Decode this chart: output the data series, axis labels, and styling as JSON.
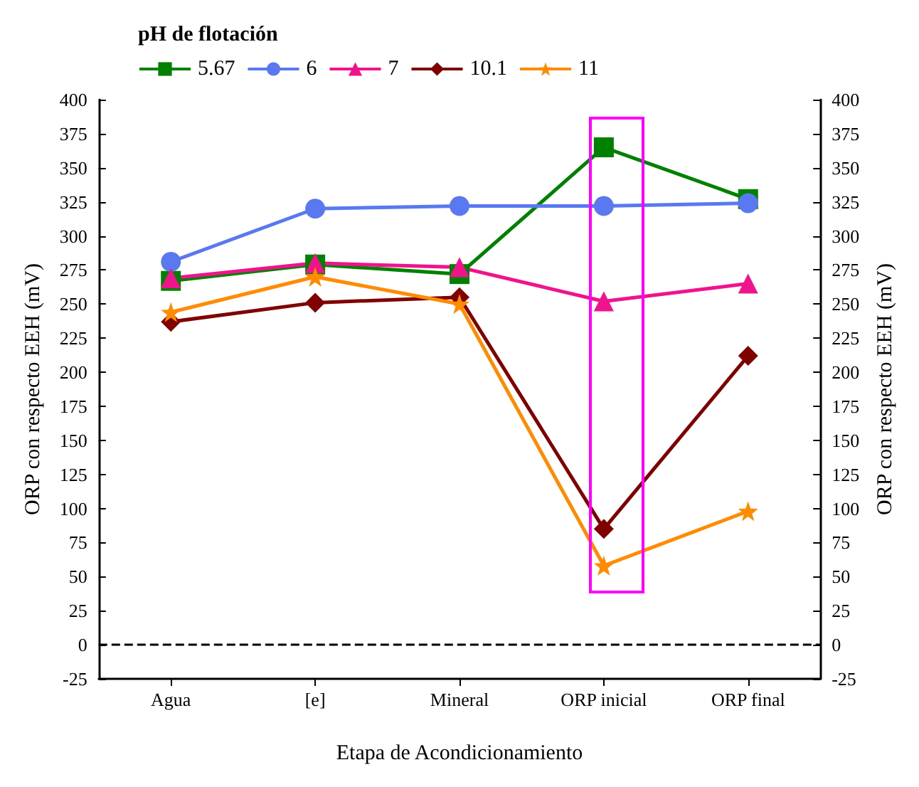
{
  "chart_data": {
    "type": "line",
    "xlabel": "Etapa de Acondicionamiento",
    "ylabel": "ORP con respecto EEH (mV)",
    "y2label": "ORP con respecto EEH (mV)",
    "legend_title": "pH de flotación",
    "legend": "top",
    "grid": false,
    "line_style": "solid",
    "categories": [
      "Agua",
      "[e]",
      "Mineral",
      "ORP inicial",
      "ORP final"
    ],
    "ylim": [
      -25,
      400
    ],
    "yticks": [
      -25,
      0,
      25,
      50,
      75,
      100,
      125,
      150,
      175,
      200,
      225,
      250,
      275,
      300,
      325,
      350,
      375,
      400
    ],
    "y2lim": [
      -25,
      400
    ],
    "y2ticks": [
      -25,
      0,
      25,
      50,
      75,
      100,
      125,
      150,
      175,
      200,
      225,
      250,
      275,
      300,
      325,
      350,
      375,
      400
    ],
    "series": [
      {
        "name": "5.67",
        "color": "#008000",
        "marker": "square",
        "values": [
          267,
          279,
          272,
          365,
          327
        ]
      },
      {
        "name": "6",
        "color": "#5a78f0",
        "marker": "circle",
        "values": [
          281,
          320,
          322,
          322,
          324
        ]
      },
      {
        "name": "7",
        "color": "#f0148c",
        "marker": "triangle",
        "values": [
          269,
          280,
          277,
          252,
          265
        ]
      },
      {
        "name": "10.1",
        "color": "#800000",
        "marker": "diamond",
        "values": [
          237,
          251,
          255,
          85,
          212
        ]
      },
      {
        "name": "11",
        "color": "#ff8c00",
        "marker": "star",
        "values": [
          244,
          270,
          250,
          58,
          98
        ]
      }
    ],
    "ref_lines": [
      {
        "axis": "y",
        "value": 0,
        "color": "#000000",
        "line_style": "dashed"
      }
    ]
  }
}
